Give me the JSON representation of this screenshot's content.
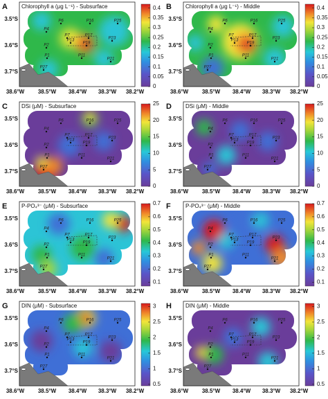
{
  "panels": [
    {
      "letter": "A",
      "title": "Chlorophyll a (μg L⁻¹) - Subsurface",
      "colorbar_range": [
        0,
        0.42
      ],
      "colorbar_ticks": [
        0,
        0.05,
        0.1,
        0.15,
        0.2,
        0.25,
        0.3,
        0.35,
        0.4
      ]
    },
    {
      "letter": "B",
      "title": "Chlorophyll a (μg L⁻¹) - Middle",
      "colorbar_range": [
        0,
        0.42
      ],
      "colorbar_ticks": [
        0,
        0.05,
        0.1,
        0.15,
        0.2,
        0.25,
        0.3,
        0.35,
        0.4
      ]
    },
    {
      "letter": "C",
      "title": "DSi (μM) - Subsurface",
      "colorbar_range": [
        0,
        25
      ],
      "colorbar_ticks": [
        0,
        5,
        10,
        15,
        20,
        25
      ]
    },
    {
      "letter": "D",
      "title": "DSi (μM) - Middle",
      "colorbar_range": [
        0,
        25
      ],
      "colorbar_ticks": [
        0,
        5,
        10,
        15,
        20,
        25
      ]
    },
    {
      "letter": "E",
      "title": "P-PO₄³⁻ (μM) - Subsurface",
      "colorbar_range": [
        0.07,
        0.7
      ],
      "colorbar_ticks": [
        0.1,
        0.2,
        0.3,
        0.4,
        0.5,
        0.6,
        0.7
      ]
    },
    {
      "letter": "F",
      "title": "P-PO₄³⁻ (μM) - Middle",
      "colorbar_range": [
        0.07,
        0.7
      ],
      "colorbar_ticks": [
        0.1,
        0.2,
        0.3,
        0.4,
        0.5,
        0.6,
        0.7
      ]
    },
    {
      "letter": "G",
      "title": "DIN (μM) - Subsurface",
      "colorbar_range": [
        0.45,
        3.1
      ],
      "colorbar_ticks": [
        0.5,
        1,
        1.5,
        2,
        2.5,
        3
      ]
    },
    {
      "letter": "H",
      "title": "DIN (μM) - Middle",
      "colorbar_range": [
        0.45,
        3.1
      ],
      "colorbar_ticks": [
        0.5,
        1,
        1.5,
        2,
        2.5,
        3
      ]
    }
  ],
  "lon_labels": [
    "38.6°W",
    "38.5°W",
    "38.4°W",
    "38.3°W",
    "38.2°W"
  ],
  "lat_labels": [
    "3.5°S",
    "3.6°S",
    "3.7°S"
  ],
  "stations": [
    "P6",
    "P16",
    "P25",
    "P4",
    "P7",
    "P17",
    "P2",
    "P13",
    "P19",
    "P23",
    "P1",
    "P11",
    "P21",
    "P27"
  ]
}
